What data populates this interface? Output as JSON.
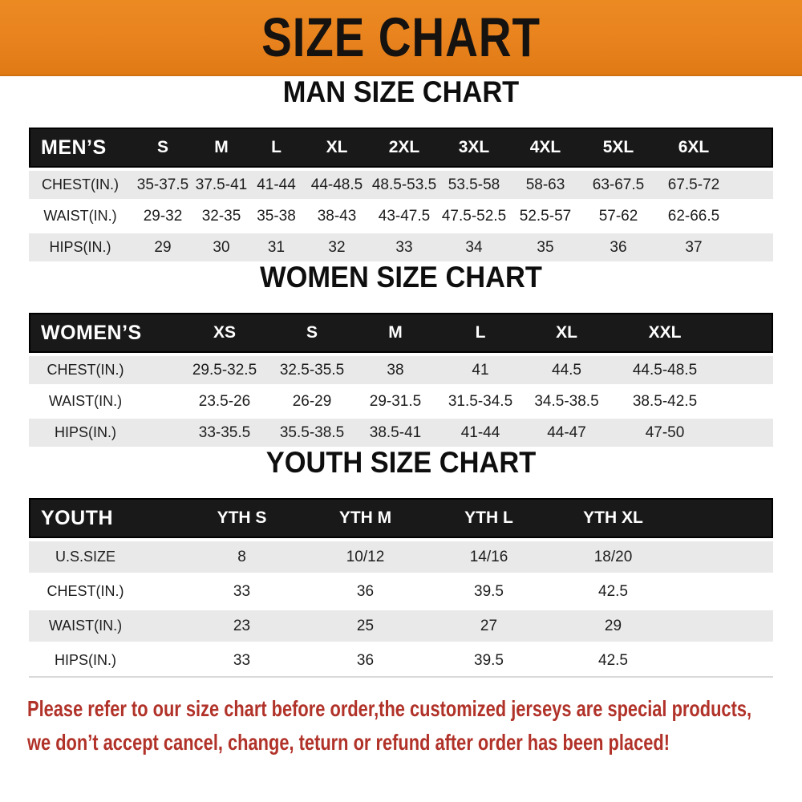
{
  "banner": {
    "title": "SIZE CHART"
  },
  "colors": {
    "banner_orange": "#e8821e",
    "header_band_black": "#191919",
    "row_stripe_gray": "#e9e9e9",
    "footer_red": "#b13229"
  },
  "chart_data": [
    {
      "type": "table",
      "title": "MAN SIZE CHART",
      "header_label": "MEN’S",
      "columns": [
        "S",
        "M",
        "L",
        "XL",
        "2XL",
        "3XL",
        "4XL",
        "5XL",
        "6XL"
      ],
      "rows": [
        {
          "label": "CHEST(IN.)",
          "values": [
            "35-37.5",
            "37.5-41",
            "41-44",
            "44-48.5",
            "48.5-53.5",
            "53.5-58",
            "58-63",
            "63-67.5",
            "67.5-72"
          ]
        },
        {
          "label": "WAIST(IN.)",
          "values": [
            "29-32",
            "32-35",
            "35-38",
            "38-43",
            "43-47.5",
            "47.5-52.5",
            "52.5-57",
            "57-62",
            "62-66.5"
          ]
        },
        {
          "label": "HIPS(IN.)",
          "values": [
            "29",
            "30",
            "31",
            "32",
            "33",
            "34",
            "35",
            "36",
            "37"
          ]
        }
      ]
    },
    {
      "type": "table",
      "title": "WOMEN SIZE CHART",
      "header_label": "WOMEN’S",
      "columns": [
        "XS",
        "S",
        "M",
        "L",
        "XL",
        "XXL"
      ],
      "rows": [
        {
          "label": "CHEST(IN.)",
          "values": [
            "29.5-32.5",
            "32.5-35.5",
            "38",
            "41",
            "44.5",
            "44.5-48.5"
          ]
        },
        {
          "label": "WAIST(IN.)",
          "values": [
            "23.5-26",
            "26-29",
            "29-31.5",
            "31.5-34.5",
            "34.5-38.5",
            "38.5-42.5"
          ]
        },
        {
          "label": "HIPS(IN.)",
          "values": [
            "33-35.5",
            "35.5-38.5",
            "38.5-41",
            "41-44",
            "44-47",
            "47-50"
          ]
        }
      ]
    },
    {
      "type": "table",
      "title": "YOUTH SIZE CHART",
      "header_label": "YOUTH",
      "columns": [
        "YTH S",
        "YTH M",
        "YTH L",
        "YTH XL"
      ],
      "rows": [
        {
          "label": "U.S.SIZE",
          "values": [
            "8",
            "10/12",
            "14/16",
            "18/20"
          ]
        },
        {
          "label": "CHEST(IN.)",
          "values": [
            "33",
            "36",
            "39.5",
            "42.5"
          ]
        },
        {
          "label": "WAIST(IN.)",
          "values": [
            "23",
            "25",
            "27",
            "29"
          ]
        },
        {
          "label": "HIPS(IN.)",
          "values": [
            "33",
            "36",
            "39.5",
            "42.5"
          ]
        }
      ]
    }
  ],
  "footer": {
    "line1": "Please refer to our size chart before order,the customized jerseys are special products,",
    "line2": "we don’t accept cancel, change, teturn or refund after order has been placed!"
  }
}
